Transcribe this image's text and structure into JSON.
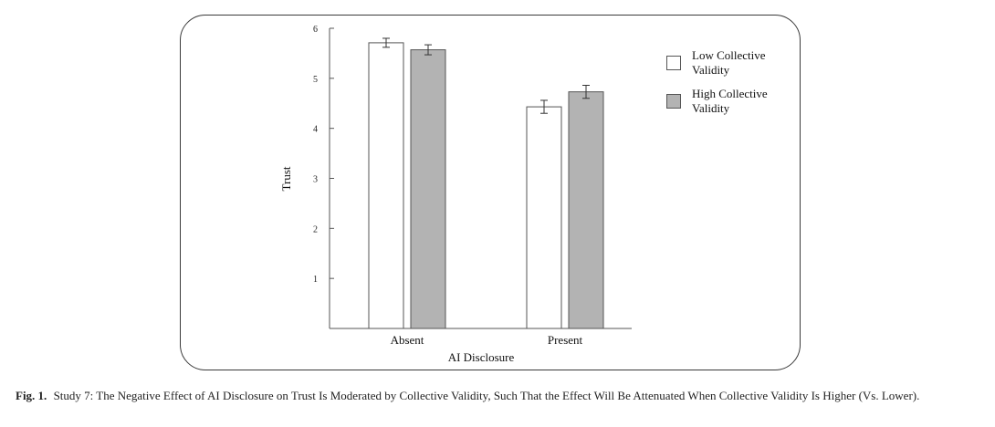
{
  "chart_data": {
    "type": "bar",
    "categories": [
      "Absent",
      "Present"
    ],
    "series": [
      {
        "name": "Low Collective Validity",
        "color": "#ffffff",
        "values": [
          5.71,
          4.43
        ],
        "errors": [
          0.09,
          0.13
        ]
      },
      {
        "name": "High Collective Validity",
        "color": "#b3b3b3",
        "values": [
          5.57,
          4.73
        ],
        "errors": [
          0.1,
          0.13
        ]
      }
    ],
    "title": "",
    "xlabel": "AI Disclosure",
    "ylabel": "Trust",
    "ylim": [
      0,
      6
    ],
    "yticks": [
      "1",
      "2",
      "3",
      "4",
      "5",
      "6"
    ],
    "grid": false,
    "legend_position": "right"
  },
  "legend": {
    "low_label": "Low Collective Validity",
    "high_label": "High Collective Validity"
  },
  "caption": {
    "label": "Fig. 1.",
    "text": "Study 7: The Negative Effect of AI Disclosure on Trust Is Moderated by Collective Validity, Such That the Effect Will Be Attenuated When Collective Validity Is Higher (Vs. Lower)."
  }
}
